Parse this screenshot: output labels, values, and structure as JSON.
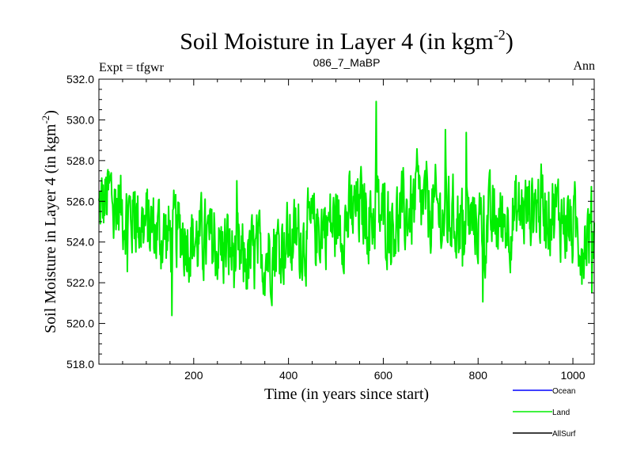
{
  "chart_data": {
    "type": "line",
    "title": "Soil Moisture in Layer 4 (in kgm",
    "title_superscript": "-2",
    "title_suffix": ")",
    "subtitle_left": "Expt = tfgwr",
    "subtitle_center": "086_7_MaBP",
    "subtitle_right": "Ann",
    "xlabel": "Time (in years since start)",
    "ylabel": "Soil Moisture in Layer 4 (in kgm",
    "ylabel_superscript": "-2",
    "ylabel_suffix": ")",
    "xlim": [
      0,
      1045
    ],
    "ylim": [
      518.0,
      532.0
    ],
    "xticks": [
      200,
      400,
      600,
      800,
      1000
    ],
    "xtick_labels": [
      "200",
      "400",
      "600",
      "800",
      "1000"
    ],
    "yticks": [
      518.0,
      520.0,
      522.0,
      524.0,
      526.0,
      528.0,
      530.0,
      532.0
    ],
    "ytick_labels": [
      "518.0",
      "520.0",
      "522.0",
      "524.0",
      "526.0",
      "528.0",
      "530.0",
      "532.0"
    ],
    "legend": [
      {
        "name": "Ocean",
        "color": "#0000ff"
      },
      {
        "name": "Land",
        "color": "#00ee00"
      },
      {
        "name": "AllSurf",
        "color": "#000000"
      }
    ],
    "series": [
      {
        "name": "Land",
        "color": "#00ee00",
        "x": [
          0,
          25,
          50,
          75,
          100,
          125,
          150,
          175,
          200,
          225,
          250,
          275,
          300,
          325,
          350,
          375,
          400,
          425,
          450,
          475,
          500,
          525,
          550,
          575,
          600,
          625,
          650,
          675,
          700,
          725,
          750,
          775,
          800,
          825,
          850,
          875,
          900,
          925,
          950,
          975,
          1000,
          1025,
          1045
        ],
        "values": [
          525.5,
          526.3,
          525.6,
          525.2,
          524.8,
          524.5,
          524.2,
          524.5,
          524.1,
          523.9,
          523.8,
          523.6,
          522.9,
          523.2,
          523.4,
          523.9,
          524.0,
          524.2,
          524.4,
          524.9,
          524.8,
          525.1,
          525.6,
          525.3,
          525.2,
          525.0,
          525.4,
          525.8,
          525.6,
          525.3,
          525.2,
          525.0,
          524.9,
          524.8,
          525.0,
          525.2,
          525.6,
          525.9,
          525.7,
          525.3,
          524.6,
          524.3,
          524.8
        ]
      }
    ]
  }
}
